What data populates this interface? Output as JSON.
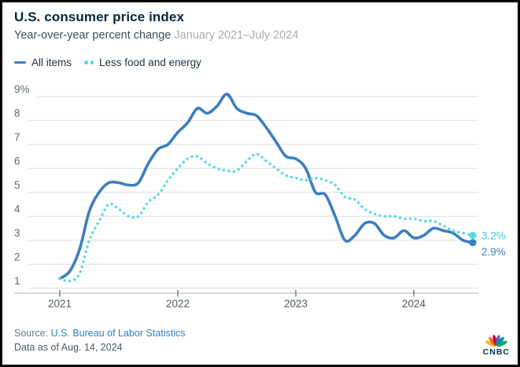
{
  "header": {
    "title": "U.S. consumer price index",
    "subtitle": "Year-over-year percent change",
    "date_range": "January 2021–July 2024"
  },
  "legend": {
    "items": [
      {
        "label": "All items",
        "style": "solid",
        "color": "#3c7ebf"
      },
      {
        "label": "Less food and energy",
        "style": "dotted",
        "color": "#57d9e5"
      }
    ]
  },
  "footer": {
    "source_prefix": "Source: ",
    "source_link": "U.S. Bureau of Labor Statistics",
    "data_as_of": "Data as of Aug. 14, 2024",
    "logo_text": "CNBC"
  },
  "chart_data": {
    "type": "line",
    "title": "U.S. consumer price index",
    "subtitle": "Year-over-year percent change",
    "x_start": "2021-01",
    "x_end": "2024-07",
    "x_interval": "month",
    "ylim": [
      1,
      9
    ],
    "grid": "horizontal",
    "legend_position": "top-left",
    "y_ticks": [
      {
        "value": 9,
        "label": "9%"
      },
      {
        "value": 8,
        "label": "8"
      },
      {
        "value": 7,
        "label": "7"
      },
      {
        "value": 6,
        "label": "6"
      },
      {
        "value": 5,
        "label": "5"
      },
      {
        "value": 4,
        "label": "4"
      },
      {
        "value": 3,
        "label": "3"
      },
      {
        "value": 2,
        "label": "2"
      },
      {
        "value": 1,
        "label": "1"
      }
    ],
    "x_ticks": [
      {
        "label": "2021",
        "month_index": 0
      },
      {
        "label": "2022",
        "month_index": 12
      },
      {
        "label": "2023",
        "month_index": 24
      },
      {
        "label": "2024",
        "month_index": 36
      }
    ],
    "series": [
      {
        "name": "All items",
        "style": "solid",
        "color": "#3c7ebf",
        "end_label": "2.9%",
        "end_label_color": "#4080bd",
        "end_label_offset": 16,
        "values": [
          1.4,
          1.7,
          2.6,
          4.2,
          5.0,
          5.4,
          5.4,
          5.3,
          5.4,
          6.2,
          6.8,
          7.0,
          7.5,
          7.9,
          8.5,
          8.3,
          8.6,
          9.1,
          8.5,
          8.3,
          8.2,
          7.7,
          7.1,
          6.5,
          6.4,
          6.0,
          5.0,
          4.9,
          4.0,
          3.0,
          3.2,
          3.7,
          3.7,
          3.2,
          3.1,
          3.4,
          3.1,
          3.2,
          3.5,
          3.4,
          3.3,
          3.0,
          2.9
        ]
      },
      {
        "name": "Less food and energy",
        "style": "dotted",
        "color": "#57d9e5",
        "end_label": "3.2%",
        "end_label_color": "#3cc9d6",
        "end_label_offset": 5,
        "values": [
          1.4,
          1.3,
          1.6,
          3.0,
          3.8,
          4.5,
          4.3,
          4.0,
          4.0,
          4.6,
          4.9,
          5.5,
          6.0,
          6.4,
          6.5,
          6.2,
          6.0,
          5.9,
          5.9,
          6.3,
          6.6,
          6.3,
          6.0,
          5.7,
          5.6,
          5.5,
          5.6,
          5.5,
          5.3,
          4.8,
          4.7,
          4.3,
          4.1,
          4.0,
          4.0,
          3.9,
          3.9,
          3.8,
          3.8,
          3.6,
          3.4,
          3.3,
          3.2
        ]
      }
    ],
    "style": {
      "grid_color": "#dcdee0",
      "axis_color": "#aeb4b8",
      "tick_color": "#707c84",
      "y_label_color": "#5b6871",
      "x_label_color": "#4e5b64"
    }
  }
}
